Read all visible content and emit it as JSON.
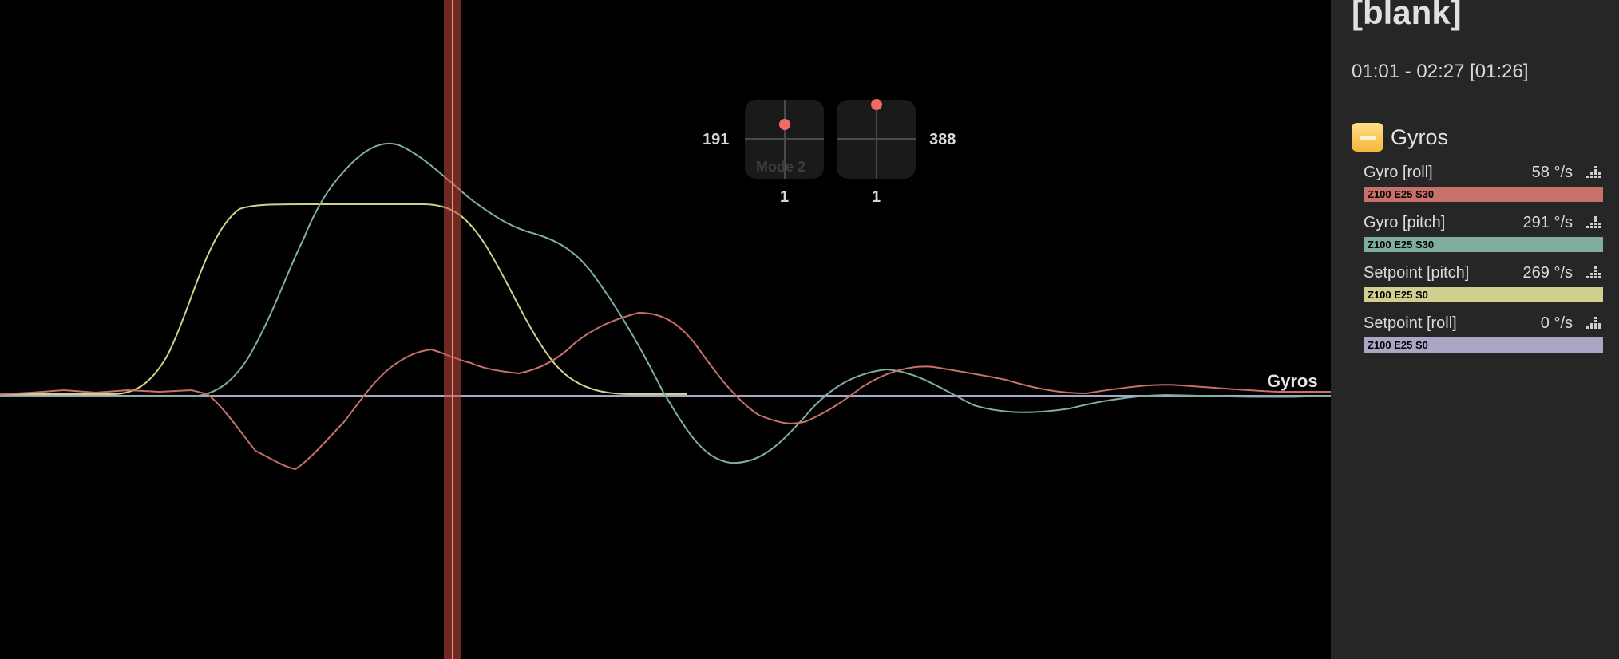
{
  "log": {
    "title": "[blank]",
    "time_range": "01:01 - 02:27 [01:26]"
  },
  "sticks": {
    "left": {
      "left_value": "191",
      "bottom_value": "1",
      "mode_label": "Mode 2"
    },
    "right": {
      "right_value": "388",
      "bottom_value": "1"
    }
  },
  "graph": {
    "label": "Gyros"
  },
  "group": {
    "title": "Gyros",
    "toggle_icon": "minus-icon",
    "fields": [
      {
        "name": "Gyro [roll]",
        "value": "58 °/s",
        "settings": "Z100 E25 S30",
        "color": "#c8706a"
      },
      {
        "name": "Gyro [pitch]",
        "value": "291 °/s",
        "settings": "Z100 E25 S30",
        "color": "#7fae9e"
      },
      {
        "name": "Setpoint [pitch]",
        "value": "269 °/s",
        "settings": "Z100 E25 S0",
        "color": "#d1d08f"
      },
      {
        "name": "Setpoint [roll]",
        "value": "0 °/s",
        "settings": "Z100 E25 S0",
        "color": "#a9a7c4"
      }
    ]
  },
  "colors": {
    "cursor": "#c84a3e",
    "stick_dot": "#f26a63",
    "gyro_roll": "#c8706a",
    "gyro_pitch": "#7fae9e",
    "setpoint_pitch": "#d1d08f",
    "setpoint_roll": "#a9a7c4"
  }
}
